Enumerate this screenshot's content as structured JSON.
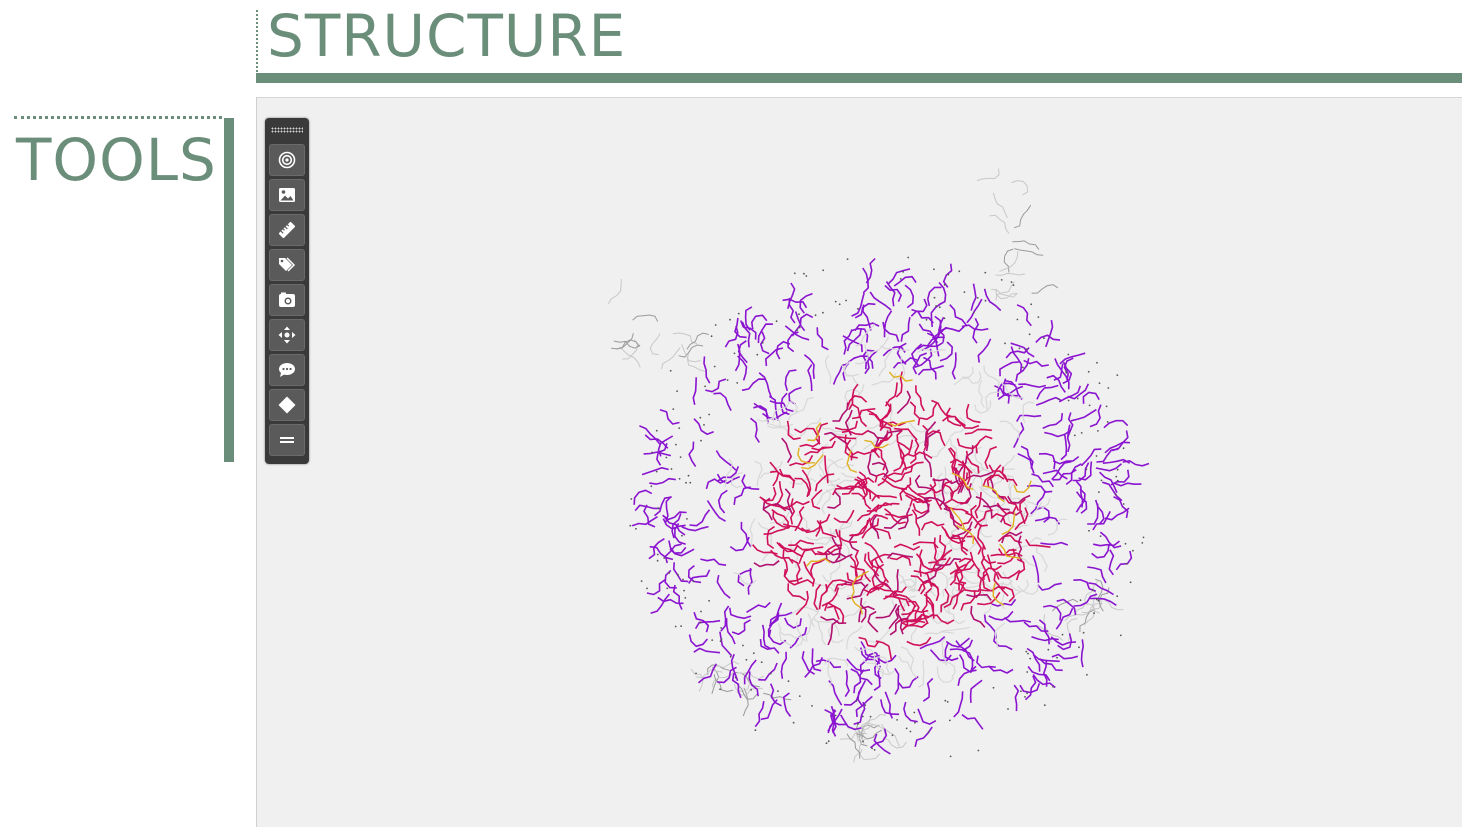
{
  "structure": {
    "title": "STRUCTURE"
  },
  "tools": {
    "title": "TOOLS"
  },
  "toolbar": {
    "buttons": [
      {
        "icon": "target-icon"
      },
      {
        "icon": "image-icon"
      },
      {
        "icon": "ruler-icon"
      },
      {
        "icon": "tags-icon"
      },
      {
        "icon": "camera-icon"
      },
      {
        "icon": "move-arrows-icon"
      },
      {
        "icon": "comment-icon"
      },
      {
        "icon": "diamond-icon"
      },
      {
        "icon": "menu-icon"
      }
    ]
  },
  "colors": {
    "accent": "#6b8e7a",
    "viewer_background": "#f0f0f0",
    "toolbar_background": "#3a3a3a",
    "molecule_outer": "#8a14cf",
    "molecule_core": "#d0105a",
    "molecule_ligand": "#e0b020",
    "molecule_tail": "#c8c8c8"
  }
}
